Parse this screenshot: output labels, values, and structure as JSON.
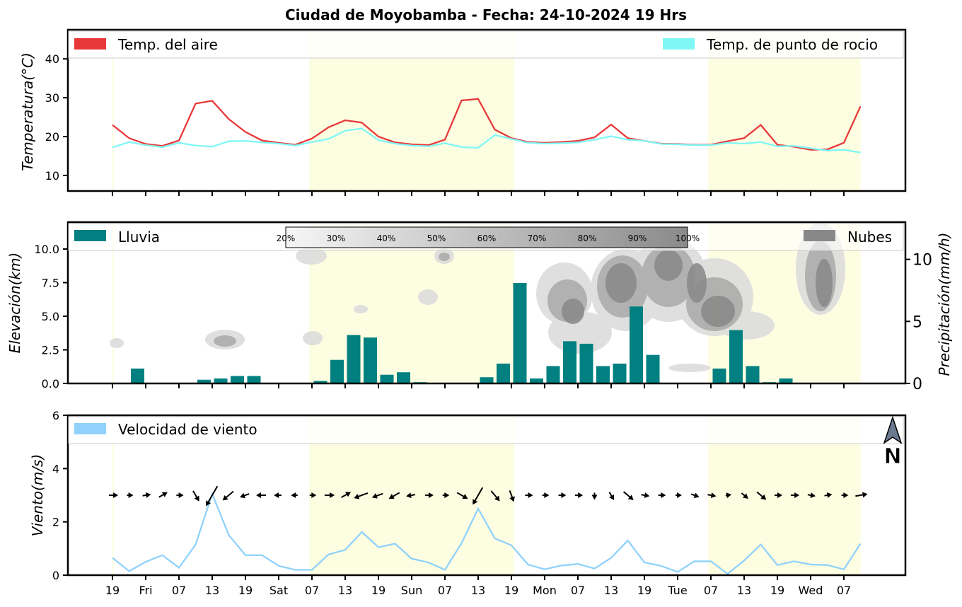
{
  "title": "Ciudad de Moyobamba   -   Fecha: 24-10-2024 19 Hrs",
  "colors": {
    "air_temp": "#e8393a",
    "dew_point": "#7ff7f5",
    "rain": "#008080",
    "clouds": "#888888",
    "wind": "#90d2fb",
    "day_band": "#fdfde2"
  },
  "chart_data": [
    {
      "type": "line",
      "panel": "temperature",
      "ylabel": "Temperatura(°C)",
      "ylim": [
        6,
        47.5
      ],
      "yticks": [
        "10",
        "20",
        "30",
        "40"
      ],
      "x": [
        19,
        20,
        21,
        22,
        23,
        24,
        25,
        26,
        27,
        28,
        29,
        30,
        31,
        32,
        33,
        34,
        35,
        36,
        37,
        38,
        39,
        40,
        41,
        42,
        43,
        44,
        45,
        46,
        47,
        48,
        49,
        50,
        51,
        52,
        53,
        54,
        55,
        56,
        57,
        58,
        59,
        60,
        61,
        62,
        63,
        64
      ],
      "series": [
        {
          "name": "Temp. del aire",
          "values": [
            23.0,
            19.6,
            18.1,
            17.6,
            19.0,
            28.5,
            29.2,
            24.5,
            21.2,
            19.0,
            18.4,
            17.9,
            19.5,
            22.4,
            24.2,
            23.6,
            20.0,
            18.5,
            18.0,
            17.8,
            19.2,
            29.3,
            29.7,
            21.8,
            19.6,
            18.6,
            18.4,
            18.6,
            18.9,
            19.8,
            23.1,
            19.6,
            18.9,
            18.2,
            18.1,
            17.9,
            17.9,
            18.8,
            19.6,
            23.0,
            17.9,
            17.4,
            16.6,
            16.7,
            18.4,
            27.8
          ]
        },
        {
          "name": "Temp. de punto de rocio",
          "values": [
            17.2,
            18.6,
            17.8,
            17.3,
            18.4,
            17.7,
            17.4,
            18.8,
            18.9,
            18.5,
            18.2,
            17.7,
            18.6,
            19.4,
            21.5,
            22.1,
            19.1,
            18.2,
            17.7,
            17.5,
            18.3,
            17.3,
            17.1,
            20.4,
            19.4,
            18.4,
            18.2,
            18.3,
            18.5,
            19.2,
            20.1,
            19.2,
            18.9,
            18.1,
            18.0,
            17.8,
            17.8,
            18.4,
            18.2,
            18.6,
            17.5,
            17.6,
            17.0,
            16.4,
            16.6,
            15.9
          ]
        }
      ]
    },
    {
      "type": "bar",
      "panel": "precipitation",
      "ylabel_left": "Elevación(km)",
      "ylabel_right": "Precipitación(mm/h)",
      "left_ylim": [
        0,
        12
      ],
      "left_yticks": [
        "0.0",
        "2.5",
        "5.0",
        "7.5",
        "10.0"
      ],
      "right_ylim": [
        0,
        13
      ],
      "right_yticks": [
        "0",
        "5",
        "10"
      ],
      "x": [
        19,
        20,
        21,
        22,
        23,
        24,
        25,
        26,
        27,
        28,
        29,
        30,
        31,
        32,
        33,
        34,
        35,
        36,
        37,
        38,
        39,
        40,
        41,
        42,
        43,
        44,
        45,
        46,
        47,
        48,
        49,
        50,
        51,
        52,
        53,
        54,
        55,
        56,
        57,
        58,
        59,
        60,
        61,
        62,
        63,
        64
      ],
      "series": [
        {
          "name": "Lluvia",
          "values": [
            0,
            1.2,
            0,
            0,
            0,
            0.3,
            0.4,
            0.6,
            0.6,
            0,
            0,
            0,
            0.2,
            1.9,
            3.9,
            3.7,
            0.7,
            0.9,
            0.1,
            0,
            0,
            0,
            0.5,
            1.6,
            8.1,
            0.4,
            1.4,
            3.4,
            3.2,
            1.4,
            1.6,
            6.2,
            2.3,
            0,
            0,
            0,
            1.2,
            4.3,
            1.4,
            0.1,
            0.4,
            0,
            0,
            0,
            0,
            0
          ]
        }
      ],
      "cloud_scale": [
        "20%",
        "30%",
        "40%",
        "50%",
        "60%",
        "70%",
        "80%",
        "90%",
        "100%"
      ],
      "legend_right": "Nubes"
    },
    {
      "type": "line",
      "panel": "wind",
      "ylabel": "Viento(m/s)",
      "ylim": [
        0,
        6
      ],
      "yticks": [
        "0",
        "2",
        "4",
        "6"
      ],
      "x": [
        19,
        20,
        21,
        22,
        23,
        24,
        25,
        26,
        27,
        28,
        29,
        30,
        31,
        32,
        33,
        34,
        35,
        36,
        37,
        38,
        39,
        40,
        41,
        42,
        43,
        44,
        45,
        46,
        47,
        48,
        49,
        50,
        51,
        52,
        53,
        54,
        55,
        56,
        57,
        58,
        59,
        60,
        61,
        62,
        63,
        64
      ],
      "series": [
        {
          "name": "Velocidad de viento",
          "values": [
            0.65,
            0.15,
            0.5,
            0.75,
            0.28,
            1.15,
            3.05,
            1.5,
            0.75,
            0.75,
            0.35,
            0.2,
            0.2,
            0.78,
            0.95,
            1.62,
            1.05,
            1.18,
            0.62,
            0.48,
            0.2,
            1.2,
            2.5,
            1.38,
            1.12,
            0.4,
            0.22,
            0.36,
            0.42,
            0.25,
            0.65,
            1.3,
            0.48,
            0.35,
            0.12,
            0.52,
            0.52,
            0.05,
            0.55,
            1.15,
            0.38,
            0.52,
            0.4,
            0.38,
            0.22,
            1.18
          ]
        }
      ],
      "wind_dir_deg": [
        90,
        90,
        80,
        60,
        90,
        150,
        210,
        230,
        250,
        270,
        270,
        270,
        90,
        90,
        60,
        250,
        250,
        240,
        260,
        90,
        90,
        120,
        210,
        140,
        160,
        90,
        90,
        90,
        90,
        180,
        150,
        130,
        100,
        90,
        90,
        110,
        100,
        80,
        130,
        130,
        90,
        90,
        100,
        80,
        90,
        80
      ],
      "north_label": "N"
    }
  ],
  "x_ticks": [
    "19",
    "Fri",
    "07",
    "13",
    "19",
    "Sat",
    "07",
    "13",
    "19",
    "Sun",
    "07",
    "13",
    "19",
    "Mon",
    "07",
    "13",
    "19",
    "Tue",
    "07",
    "13",
    "19",
    "Wed",
    "07"
  ]
}
